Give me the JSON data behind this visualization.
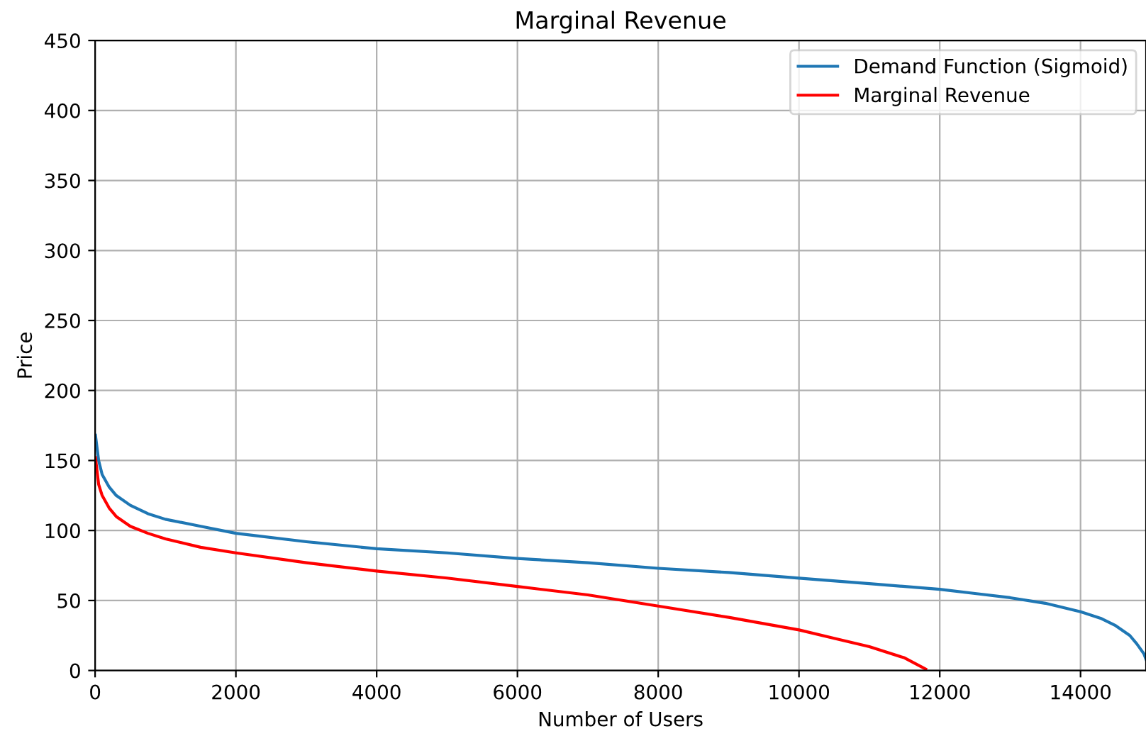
{
  "chart_data": {
    "type": "line",
    "title": "Marginal Revenue",
    "xlabel": "Number of Users",
    "ylabel": "Price",
    "xlim": [
      0,
      14930
    ],
    "ylim": [
      0,
      450
    ],
    "xticks": [
      0,
      2000,
      4000,
      6000,
      8000,
      10000,
      12000,
      14000
    ],
    "yticks": [
      0,
      50,
      100,
      150,
      200,
      250,
      300,
      350,
      400,
      450
    ],
    "grid": true,
    "legend": "top right",
    "series": [
      {
        "name": "Demand Function (Sigmoid)",
        "color": "#1f77b4",
        "x": [
          5,
          50,
          100,
          200,
          300,
          500,
          750,
          1000,
          1500,
          2000,
          3000,
          4000,
          5000,
          6000,
          7000,
          8000,
          9000,
          10000,
          11000,
          12000,
          12500,
          13000,
          13500,
          14000,
          14300,
          14500,
          14700,
          14800,
          14900,
          14930
        ],
        "values": [
          168,
          150,
          140,
          131,
          125,
          118,
          112,
          108,
          103,
          98,
          92,
          87,
          84,
          80,
          77,
          73,
          70,
          66,
          62,
          58,
          55,
          52,
          48,
          42,
          37,
          32,
          25,
          19,
          12,
          8
        ]
      },
      {
        "name": "Marginal Revenue",
        "color": "#ff0000",
        "x": [
          5,
          50,
          100,
          200,
          300,
          500,
          750,
          1000,
          1500,
          2000,
          3000,
          4000,
          5000,
          6000,
          7000,
          8000,
          9000,
          10000,
          10500,
          11000,
          11500,
          11800
        ],
        "values": [
          152,
          133,
          125,
          116,
          110,
          103,
          98,
          94,
          88,
          84,
          77,
          71,
          66,
          60,
          54,
          46,
          38,
          29,
          23,
          17,
          9,
          1
        ]
      }
    ]
  }
}
